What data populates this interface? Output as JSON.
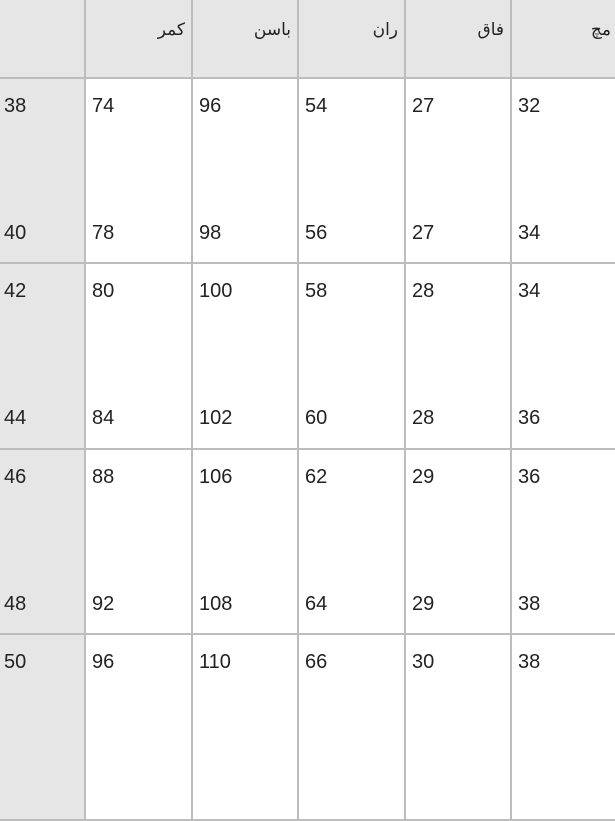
{
  "table": {
    "headers": [
      "",
      "کمر",
      "باسن",
      "ران",
      "فاق",
      "مچ"
    ],
    "rows": [
      [
        "38",
        "74",
        "96",
        "54",
        "27",
        "32"
      ],
      [
        "40",
        "78",
        "98",
        "56",
        "27",
        "34"
      ],
      [
        "42",
        "80",
        "100",
        "58",
        "28",
        "34"
      ],
      [
        "44",
        "84",
        "102",
        "60",
        "28",
        "36"
      ],
      [
        "46",
        "88",
        "106",
        "62",
        "29",
        "36"
      ],
      [
        "48",
        "92",
        "108",
        "64",
        "29",
        "38"
      ],
      [
        "50",
        "96",
        "110",
        "66",
        "30",
        "38"
      ]
    ]
  },
  "colors": {
    "accent": "#f39c34",
    "header_bg": "#e6e6e6",
    "grid": "#bdbdbd"
  }
}
